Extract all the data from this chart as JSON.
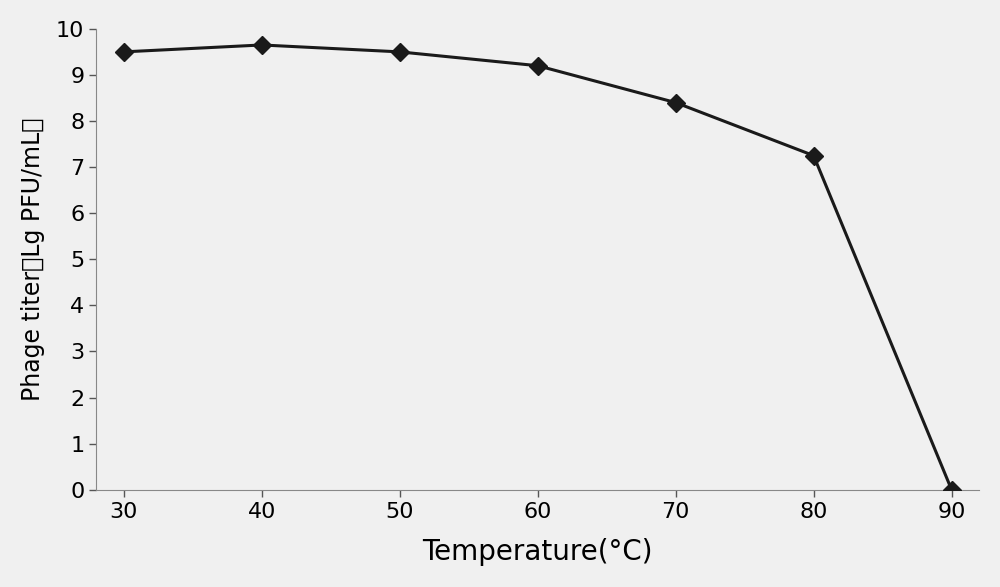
{
  "x": [
    30,
    40,
    50,
    60,
    70,
    80,
    90
  ],
  "y": [
    9.5,
    9.65,
    9.5,
    9.2,
    8.4,
    7.25,
    0.0
  ],
  "line_color": "#1a1a1a",
  "marker": "D",
  "marker_color": "#1a1a1a",
  "marker_size": 9,
  "linewidth": 2.2,
  "xlabel": "Temperature(°C)",
  "ylabel": "Phage titer（Lg PFU/mL）",
  "xlim": [
    28,
    92
  ],
  "ylim": [
    0,
    10
  ],
  "xticks": [
    30,
    40,
    50,
    60,
    70,
    80,
    90
  ],
  "yticks": [
    0,
    1,
    2,
    3,
    4,
    5,
    6,
    7,
    8,
    9,
    10
  ],
  "xlabel_fontsize": 20,
  "ylabel_fontsize": 17,
  "tick_fontsize": 16,
  "background_color": "#f0f0f0",
  "fig_background": "#f0f0f0"
}
